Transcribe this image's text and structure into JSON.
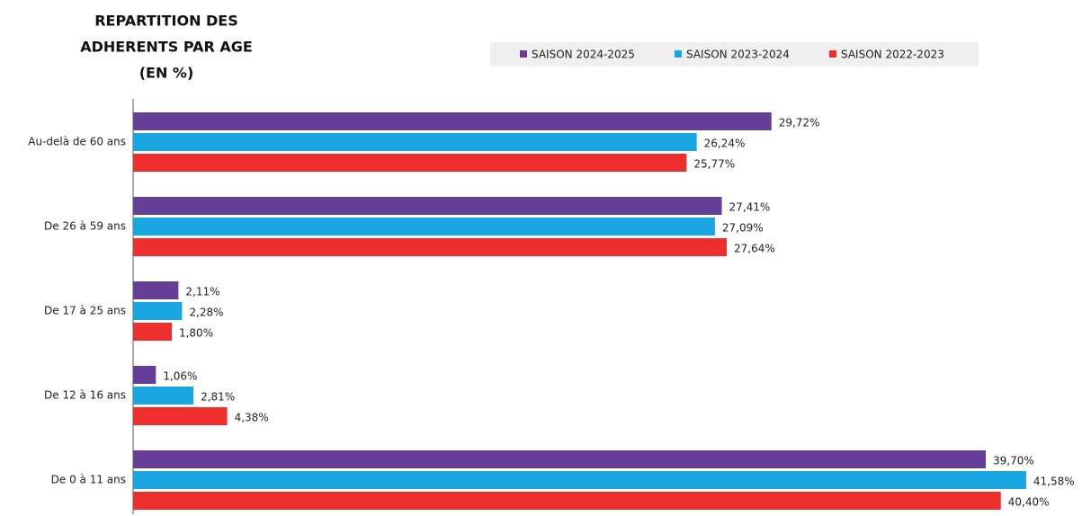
{
  "chart_data": {
    "type": "barh",
    "title": [
      "REPARTITION DES",
      "ADHERENTS PAR AGE",
      "(EN %)"
    ],
    "categories": [
      "Au-delà de 60 ans",
      "De 26 à 59 ans",
      "De 17 à 25 ans",
      "De 12 à 16 ans",
      "De 0 à 11 ans"
    ],
    "series": [
      {
        "name": "SAISON 2024-2025",
        "color": "#653f97",
        "values": [
          29.72,
          27.41,
          2.11,
          1.06,
          39.7
        ],
        "value_labels": [
          "29,72%",
          "27,41%",
          "2,11%",
          "1,06%",
          "39,70%"
        ]
      },
      {
        "name": "SAISON 2023-2024",
        "color": "#1aa7e1",
        "values": [
          26.24,
          27.09,
          2.28,
          2.81,
          41.58
        ],
        "value_labels": [
          "26,24%",
          "27,09%",
          "2,28%",
          "2,81%",
          "41,58%"
        ]
      },
      {
        "name": "SAISON 2022-2023",
        "color": "#ee2d2d",
        "values": [
          25.77,
          27.64,
          1.8,
          4.38,
          40.4
        ],
        "value_labels": [
          "25,77%",
          "27,64%",
          "1,80%",
          "4,38%",
          "40,40%"
        ]
      }
    ],
    "legend": "top-right"
  }
}
